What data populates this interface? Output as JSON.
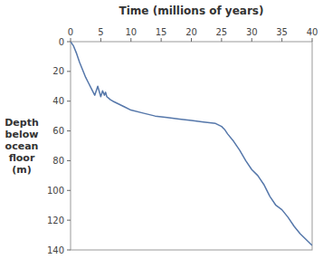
{
  "chart_data": {
    "type": "line",
    "x_label": "Time (millions of years)",
    "y_label": "Depth\nbelow\nocean\nfloor\n(m)",
    "x": [
      0,
      0.5,
      1.0,
      1.5,
      2.0,
      2.5,
      3.0,
      3.5,
      4.0,
      4.5,
      5.0,
      5.3,
      5.6,
      5.8,
      6.0,
      6.3,
      6.6,
      7.0,
      8.0,
      9.0,
      10.0,
      12.0,
      14.0,
      16.0,
      18.0,
      20.0,
      22.0,
      24.0,
      25.0,
      25.5,
      26.0,
      27.0,
      28.0,
      29.0,
      30.0,
      31.0,
      32.0,
      33.0,
      34.0,
      35.0,
      36.0,
      37.0,
      38.0,
      39.0,
      40.0
    ],
    "values": [
      0,
      3,
      8,
      14,
      19,
      24,
      28,
      32,
      36,
      30,
      37,
      33,
      36,
      34,
      37,
      38,
      39,
      40,
      42,
      44,
      46,
      48,
      50,
      51,
      52,
      53,
      54,
      55,
      57,
      59,
      62,
      67,
      73,
      80,
      86,
      90,
      96,
      104,
      110,
      113,
      118,
      124,
      129,
      133,
      137
    ],
    "color": "#5577aa",
    "xlim": [
      0,
      40
    ],
    "xticks": [
      0,
      5,
      10,
      15,
      20,
      25,
      30,
      35,
      40
    ],
    "ylim": [
      140,
      0
    ],
    "yticks": [
      0,
      20,
      40,
      60,
      80,
      100,
      120,
      140
    ],
    "grid": false
  }
}
